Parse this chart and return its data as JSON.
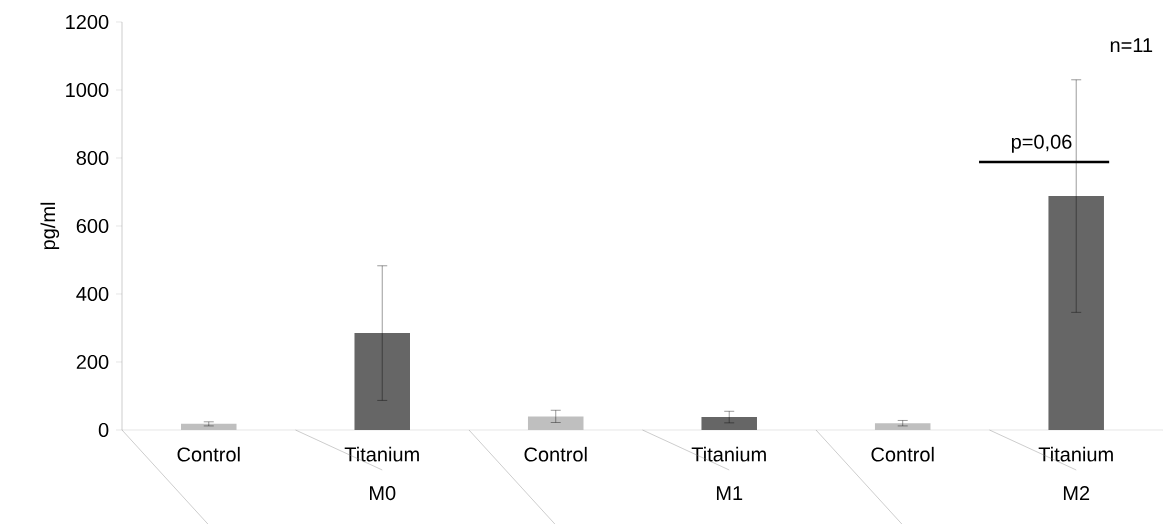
{
  "chart_data": {
    "type": "bar",
    "ylabel": "pg/ml",
    "categories": [
      "Control",
      "Titanium",
      "Control",
      "Titanium",
      "Control",
      "Titanium"
    ],
    "values": [
      18,
      285,
      40,
      38,
      20,
      688
    ],
    "errors": [
      6,
      198,
      18,
      17,
      8,
      342
    ],
    "colors": [
      "#bfbfbf",
      "#666666",
      "#bfbfbf",
      "#666666",
      "#bfbfbf",
      "#666666"
    ],
    "ylim": [
      0,
      1200
    ],
    "yticks": [
      0,
      200,
      400,
      600,
      800,
      1000,
      1200
    ],
    "grid": false,
    "annotations": [
      "M0",
      "M1",
      "M2",
      "p=0,06",
      "n=11"
    ]
  }
}
